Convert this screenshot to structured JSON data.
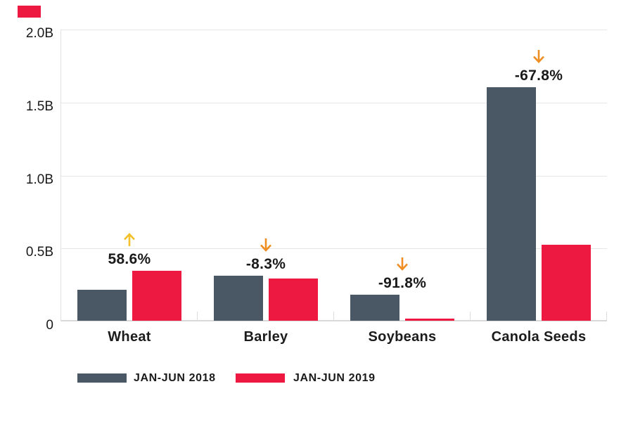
{
  "page": {
    "background": "#ffffff"
  },
  "brand_mark": {
    "color": "#ED1941"
  },
  "chart_data": {
    "type": "bar",
    "title": "",
    "unit": "B",
    "categories": [
      "Wheat",
      "Barley",
      "Soybeans",
      "Canola Seeds"
    ],
    "series": [
      {
        "name": "JAN-JUN 2018",
        "color": "#4A5866",
        "values": [
          0.21,
          0.31,
          0.18,
          1.6
        ]
      },
      {
        "name": "JAN-JUN 2019",
        "color": "#ED1941",
        "values": [
          0.34,
          0.29,
          0.015,
          0.52
        ]
      }
    ],
    "change_labels": [
      {
        "text": "58.6%",
        "direction": "up",
        "arrow_color": "#F2C029"
      },
      {
        "text": "-8.3%",
        "direction": "down",
        "arrow_color": "#EF8E22"
      },
      {
        "text": "-91.8%",
        "direction": "down",
        "arrow_color": "#EF8E22"
      },
      {
        "text": "-67.8%",
        "direction": "down",
        "arrow_color": "#EF8E22"
      }
    ],
    "ylim": [
      0,
      2.0
    ],
    "yticks": [
      "2.0B",
      "1.5B",
      "1.0B",
      "0.5B",
      "0"
    ],
    "grid": true,
    "legend_position": "bottom-left",
    "legend": [
      {
        "label": "JAN-JUN 2018",
        "color": "#4A5866"
      },
      {
        "label": "JAN-JUN 2019",
        "color": "#ED1941"
      }
    ]
  }
}
